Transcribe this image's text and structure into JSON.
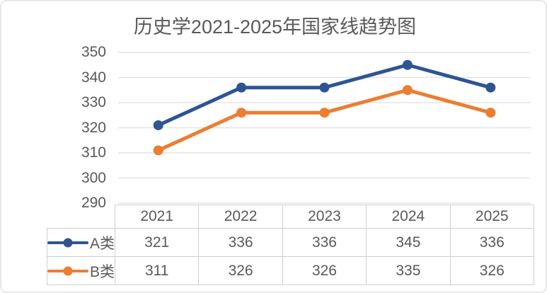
{
  "chart_data": {
    "type": "line",
    "title": "历史学2021-2025年国家线趋势图",
    "categories": [
      "2021",
      "2022",
      "2023",
      "2024",
      "2025"
    ],
    "series": [
      {
        "name": "A类",
        "values": [
          321,
          336,
          336,
          345,
          336
        ],
        "color": "#2e5494"
      },
      {
        "name": "B类",
        "values": [
          311,
          326,
          326,
          335,
          326
        ],
        "color": "#ed7d31"
      }
    ],
    "ylim": [
      290,
      350
    ],
    "yticks": [
      350,
      340,
      330,
      320,
      310,
      300,
      290
    ],
    "grid": true,
    "marker": "circle",
    "line_width": 5,
    "legend_position": "table-rows-left",
    "xlabel": "",
    "ylabel": ""
  },
  "colors": {
    "text": "#595959",
    "gridline": "#e4e4e4",
    "table_border": "#cfcfcf",
    "frame_border": "#e7e7e7",
    "background": "#ffffff"
  }
}
